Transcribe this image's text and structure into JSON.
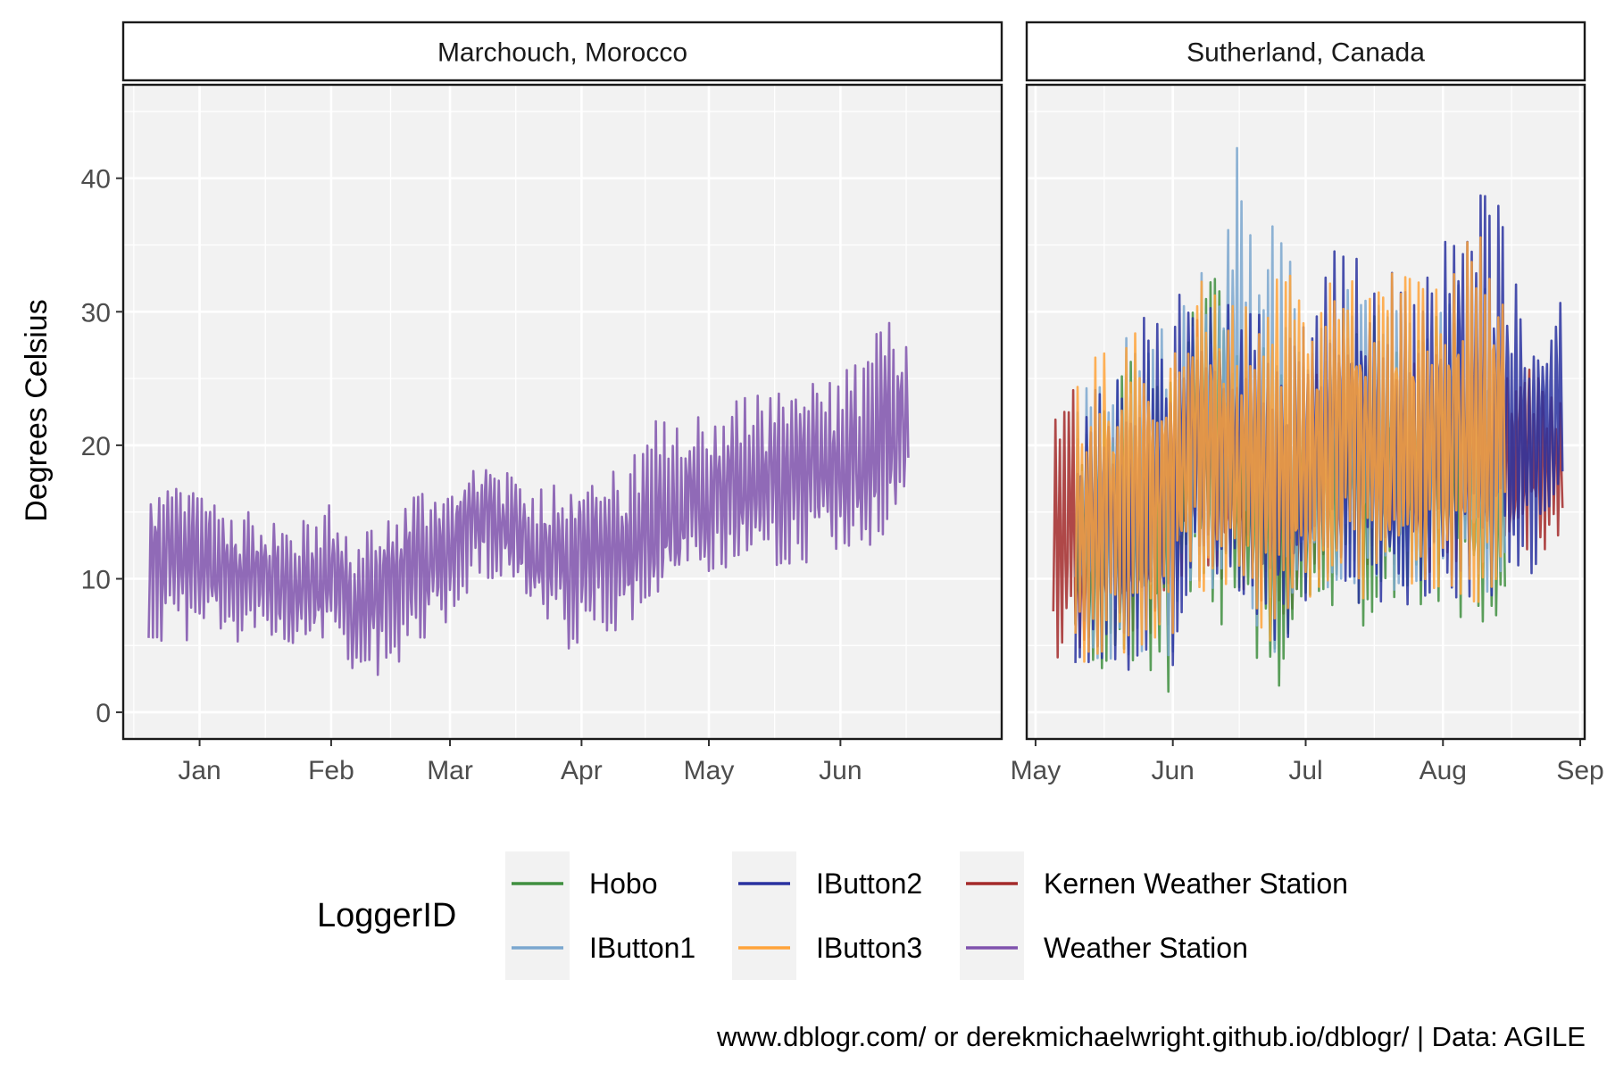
{
  "chart_data": {
    "type": "line",
    "ylabel": "Degrees Celsius",
    "ylim": [
      -2,
      47
    ],
    "yticks": [
      0,
      10,
      20,
      30,
      40
    ],
    "grid": true,
    "legend_position": "bottom",
    "legend_title": "LoggerID",
    "caption": "www.dblogr.com/ or derekmichaelwright.github.io/dblogr/ | Data: AGILE",
    "colors": {
      "Hobo": "#3f8f3f",
      "IButton1": "#7ba7cf",
      "IButton2": "#2a32a0",
      "IButton3": "#ffa33a",
      "Kernen Weather Station": "#a32a2a",
      "Weather Station": "#7f52ad"
    },
    "legend": [
      "Hobo",
      "IButton1",
      "IButton2",
      "IButton3",
      "Kernen Weather Station",
      "Weather Station"
    ],
    "panels": [
      {
        "title": "Marchouch, Morocco",
        "xlim": [
          "2017-12-14",
          "2018-07-09"
        ],
        "xticks": [
          {
            "date": "2018-01-01",
            "label": "Jan"
          },
          {
            "date": "2018-02-01",
            "label": "Feb"
          },
          {
            "date": "2018-03-01",
            "label": "Mar"
          },
          {
            "date": "2018-04-01",
            "label": "Apr"
          },
          {
            "date": "2018-05-01",
            "label": "May"
          },
          {
            "date": "2018-06-01",
            "label": "Jun"
          }
        ],
        "series": [
          {
            "name": "Weather Station",
            "x": [
              "2017-12-20",
              "2017-12-27",
              "2018-01-03",
              "2018-01-10",
              "2018-01-17",
              "2018-01-24",
              "2018-01-31",
              "2018-02-07",
              "2018-02-14",
              "2018-02-21",
              "2018-02-28",
              "2018-03-07",
              "2018-03-14",
              "2018-03-21",
              "2018-03-28",
              "2018-04-04",
              "2018-04-11",
              "2018-04-18",
              "2018-04-25",
              "2018-05-02",
              "2018-05-09",
              "2018-05-16",
              "2018-05-23",
              "2018-05-30",
              "2018-06-06",
              "2018-06-13",
              "2018-06-17"
            ],
            "low": [
              4,
              5,
              6,
              5,
              5,
              4,
              5,
              2,
              3,
              4,
              6,
              10,
              10,
              7,
              4,
              6,
              6,
              8,
              10,
              10,
              11,
              11,
              11,
              12,
              12,
              13,
              14
            ],
            "high": [
              17,
              17,
              17,
              15,
              15,
              14,
              16,
              13,
              15,
              17,
              17,
              19,
              18,
              17,
              18,
              19,
              18,
              22,
              22,
              23,
              24,
              24,
              25,
              25,
              27,
              30,
              31
            ],
            "mean": [
              11,
              12,
              12,
              10,
              10,
              9,
              10,
              8,
              9,
              11,
              12,
              15,
              14,
              12,
              12,
              12,
              12,
              14,
              15,
              16,
              17,
              17,
              18,
              18,
              19,
              21,
              22
            ]
          }
        ]
      },
      {
        "title": "Sutherland, Canada",
        "xlim": [
          "2018-04-29",
          "2018-09-02"
        ],
        "xticks": [
          {
            "date": "2018-05-01",
            "label": "May"
          },
          {
            "date": "2018-06-01",
            "label": "Jun"
          },
          {
            "date": "2018-07-01",
            "label": "Jul"
          },
          {
            "date": "2018-08-01",
            "label": "Aug"
          },
          {
            "date": "2018-09-01",
            "label": "Sep"
          }
        ],
        "series": [
          {
            "name": "Kernen Weather Station",
            "x": [
              "2018-05-05",
              "2018-05-10",
              "2018-05-15",
              "2018-05-20",
              "2018-05-25",
              "2018-05-31",
              "2018-06-05",
              "2018-06-10",
              "2018-06-15",
              "2018-06-20",
              "2018-06-25",
              "2018-06-30",
              "2018-07-05",
              "2018-07-10",
              "2018-07-15",
              "2018-07-20",
              "2018-07-25",
              "2018-07-31",
              "2018-08-05",
              "2018-08-10",
              "2018-08-15",
              "2018-08-20",
              "2018-08-25",
              "2018-08-28"
            ],
            "low": [
              1,
              4,
              6,
              4,
              5,
              6,
              10,
              10,
              9,
              8,
              4,
              8,
              10,
              10,
              10,
              10,
              11,
              10,
              10,
              9,
              10,
              12,
              11,
              11
            ],
            "high": [
              30,
              24,
              22,
              23,
              25,
              26,
              30,
              29,
              27,
              26,
              26,
              26,
              28,
              29,
              28,
              27,
              27,
              28,
              27,
              27,
              26,
              27,
              25,
              23
            ],
            "mean": [
              14,
              13,
              13,
              13,
              14,
              15,
              18,
              18,
              17,
              16,
              14,
              16,
              18,
              19,
              18,
              18,
              18,
              18,
              18,
              17,
              17,
              20,
              19,
              20
            ]
          },
          {
            "name": "Hobo",
            "x": [
              "2018-05-10",
              "2018-05-15",
              "2018-05-20",
              "2018-05-25",
              "2018-05-31",
              "2018-06-05",
              "2018-06-10",
              "2018-06-15",
              "2018-06-20",
              "2018-06-25",
              "2018-06-30",
              "2018-07-05",
              "2018-07-10",
              "2018-07-15",
              "2018-07-20",
              "2018-07-25",
              "2018-07-31",
              "2018-08-05",
              "2018-08-10",
              "2018-08-15"
            ],
            "low": [
              4,
              3,
              2,
              3,
              1,
              8,
              6,
              7,
              4,
              2,
              7,
              8,
              8,
              6,
              7,
              8,
              8,
              7,
              6,
              7
            ],
            "high": [
              20,
              24,
              26,
              28,
              27,
              31,
              33,
              29,
              28,
              27,
              26,
              27,
              31,
              30,
              29,
              29,
              30,
              30,
              29,
              26
            ],
            "mean": [
              12,
              13,
              14,
              15,
              14,
              19,
              19,
              18,
              16,
              14,
              16,
              17,
              19,
              18,
              18,
              18,
              19,
              18,
              17,
              16
            ]
          },
          {
            "name": "IButton1",
            "x": [
              "2018-05-10",
              "2018-05-15",
              "2018-05-20",
              "2018-05-25",
              "2018-05-31",
              "2018-06-05",
              "2018-06-10",
              "2018-06-15",
              "2018-06-20",
              "2018-06-25",
              "2018-06-30",
              "2018-07-05",
              "2018-07-10",
              "2018-07-15",
              "2018-07-20",
              "2018-07-25",
              "2018-07-31",
              "2018-08-05",
              "2018-08-10",
              "2018-08-15"
            ],
            "low": [
              5,
              4,
              4,
              4,
              3,
              9,
              8,
              9,
              6,
              4,
              8,
              9,
              9,
              8,
              8,
              9,
              9,
              9,
              8,
              8
            ],
            "high": [
              23,
              26,
              28,
              29,
              29,
              33,
              34,
              44,
              34,
              40,
              30,
              29,
              32,
              33,
              31,
              31,
              32,
              32,
              33,
              30
            ],
            "mean": [
              13,
              14,
              15,
              16,
              15,
              20,
              20,
              22,
              19,
              18,
              17,
              18,
              20,
              20,
              19,
              19,
              20,
              20,
              19,
              18
            ]
          },
          {
            "name": "IButton2",
            "x": [
              "2018-05-10",
              "2018-05-15",
              "2018-05-20",
              "2018-05-25",
              "2018-05-31",
              "2018-06-05",
              "2018-06-10",
              "2018-06-15",
              "2018-06-20",
              "2018-06-25",
              "2018-06-30",
              "2018-07-05",
              "2018-07-10",
              "2018-07-15",
              "2018-07-20",
              "2018-07-25",
              "2018-07-31",
              "2018-08-05",
              "2018-08-10",
              "2018-08-15",
              "2018-08-20",
              "2018-08-25",
              "2018-08-28"
            ],
            "low": [
              3,
              3,
              2,
              3,
              2,
              8,
              7,
              8,
              5,
              3,
              7,
              9,
              9,
              7,
              8,
              8,
              9,
              8,
              8,
              9,
              9,
              10,
              12
            ],
            "high": [
              24,
              26,
              27,
              31,
              28,
              35,
              35,
              31,
              30,
              29,
              30,
              33,
              37,
              33,
              34,
              33,
              35,
              40,
              39,
              38,
              27,
              31,
              34
            ],
            "mean": [
              13,
              14,
              14,
              16,
              15,
              20,
              20,
              19,
              17,
              16,
              17,
              19,
              21,
              20,
              19,
              19,
              20,
              22,
              22,
              21,
              20,
              20,
              22
            ]
          },
          {
            "name": "IButton3",
            "x": [
              "2018-05-10",
              "2018-05-15",
              "2018-05-20",
              "2018-05-25",
              "2018-05-31",
              "2018-06-05",
              "2018-06-10",
              "2018-06-15",
              "2018-06-20",
              "2018-06-25",
              "2018-06-30",
              "2018-07-05",
              "2018-07-10",
              "2018-07-15",
              "2018-07-20",
              "2018-07-25",
              "2018-07-31",
              "2018-08-05",
              "2018-08-10",
              "2018-08-15"
            ],
            "low": [
              4,
              3,
              3,
              4,
              3,
              9,
              8,
              9,
              6,
              4,
              8,
              9,
              9,
              8,
              8,
              9,
              9,
              8,
              8,
              9
            ],
            "high": [
              25,
              27,
              28,
              30,
              29,
              34,
              33,
              31,
              30,
              33,
              34,
              33,
              35,
              33,
              34,
              33,
              34,
              35,
              36,
              35
            ],
            "mean": [
              14,
              15,
              15,
              16,
              16,
              20,
              20,
              19,
              18,
              18,
              19,
              19,
              21,
              20,
              20,
              20,
              20,
              21,
              21,
              21
            ]
          }
        ]
      }
    ]
  }
}
